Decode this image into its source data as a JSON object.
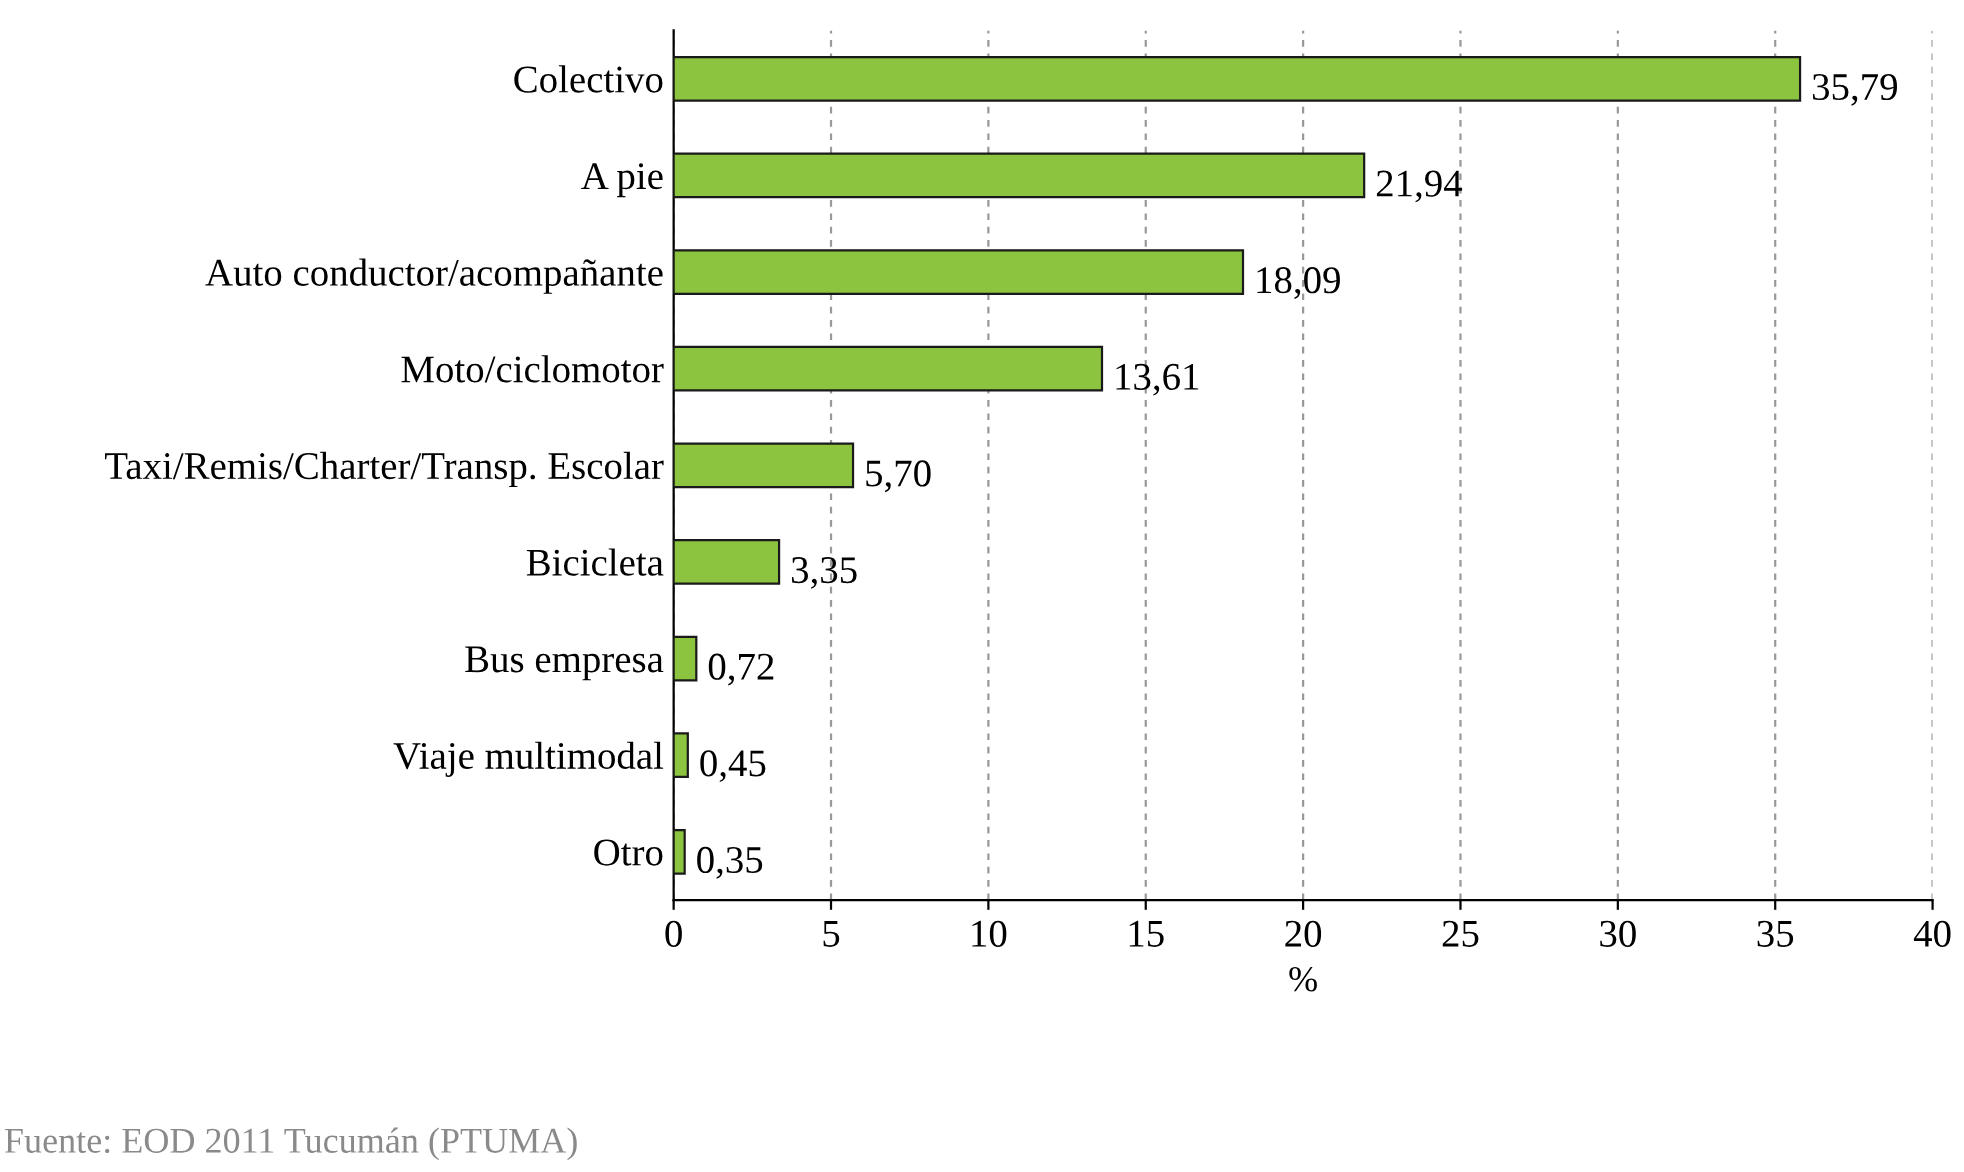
{
  "chart_data": {
    "type": "bar",
    "orientation": "horizontal",
    "categories": [
      "Colectivo",
      "A pie",
      "Auto conductor/acompañante",
      "Moto/ciclomotor",
      "Taxi/Remis/Charter/Transp. Escolar",
      "Bicicleta",
      "Bus empresa",
      "Viaje multimodal",
      "Otro"
    ],
    "values": [
      35.79,
      21.94,
      18.09,
      13.61,
      5.7,
      3.35,
      0.72,
      0.45,
      0.35
    ],
    "value_labels": [
      "35,79",
      "21,94",
      "18,09",
      "13,61",
      "5,70",
      "3,35",
      "0,72",
      "0,45",
      "0,35"
    ],
    "color": "#8cc43f",
    "xlabel": "%",
    "xlim": [
      0,
      40
    ],
    "xticks": [
      0,
      5,
      10,
      15,
      20,
      25,
      30,
      35,
      40
    ],
    "grid": "x",
    "annotations": [
      "Fuente: EOD 2011 Tucumán (PTUMA)"
    ]
  }
}
